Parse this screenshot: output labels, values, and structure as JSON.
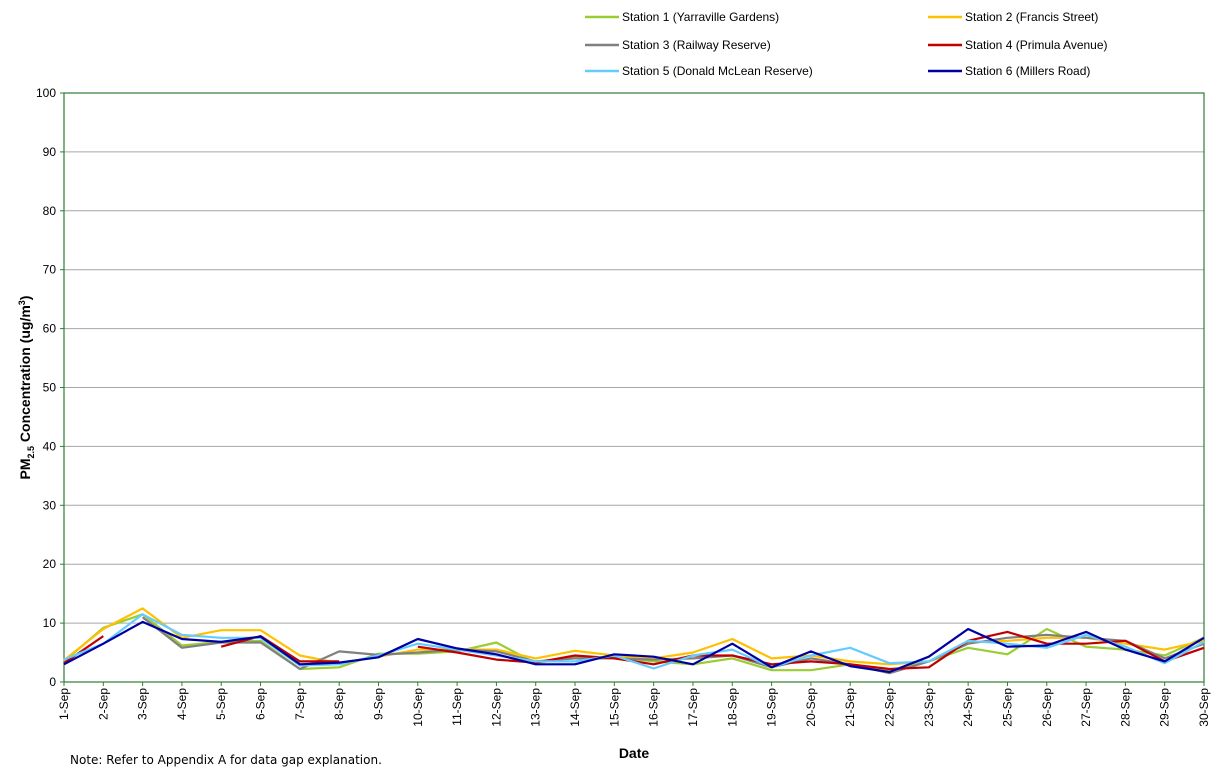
{
  "chart_data": {
    "type": "line",
    "xlabel": "Date",
    "ylabel_main": "PM",
    "ylabel_sub": "2.5",
    "ylabel_rest": " Concentration (ug/m",
    "ylabel_sup": "3",
    "ylabel_end": ")",
    "ylim": [
      0,
      100
    ],
    "yticks": [
      0,
      10,
      20,
      30,
      40,
      50,
      60,
      70,
      80,
      90,
      100
    ],
    "grid": true,
    "legend_position": "top-right",
    "x": [
      "1-Sep",
      "2-Sep",
      "3-Sep",
      "4-Sep",
      "5-Sep",
      "6-Sep",
      "7-Sep",
      "8-Sep",
      "9-Sep",
      "10-Sep",
      "11-Sep",
      "12-Sep",
      "13-Sep",
      "14-Sep",
      "15-Sep",
      "16-Sep",
      "17-Sep",
      "18-Sep",
      "19-Sep",
      "20-Sep",
      "21-Sep",
      "22-Sep",
      "23-Sep",
      "24-Sep",
      "25-Sep",
      "26-Sep",
      "27-Sep",
      "28-Sep",
      "29-Sep",
      "30-Sep"
    ],
    "series": [
      {
        "name": "Station 1 (Yarraville Gardens)",
        "color": "#9acd32",
        "values": [
          3.5,
          9.2,
          11.5,
          6.2,
          6.8,
          7.0,
          2.2,
          2.5,
          4.8,
          4.8,
          5.2,
          6.7,
          3.2,
          4.2,
          4.2,
          3.5,
          3.0,
          4.0,
          2.0,
          2.0,
          3.0,
          2.0,
          3.5,
          5.8,
          4.7,
          9.0,
          6.0,
          5.5,
          4.5,
          7.5
        ]
      },
      {
        "name": "Station 2 (Francis Street)",
        "color": "#ffc000",
        "values": [
          3.7,
          9.0,
          12.5,
          7.5,
          8.8,
          8.8,
          4.5,
          3.2,
          4.3,
          5.5,
          5.5,
          5.5,
          4.0,
          5.3,
          4.5,
          4.0,
          5.0,
          7.3,
          4.0,
          4.5,
          3.5,
          3.0,
          3.5,
          6.7,
          7.0,
          7.5,
          7.5,
          6.5,
          5.5,
          7.0
        ]
      },
      {
        "name": "Station 3 (Railway Reserve)",
        "color": "#808080",
        "values": [
          3.5,
          null,
          11.0,
          5.8,
          6.7,
          6.7,
          2.2,
          5.2,
          4.6,
          5.0,
          5.5,
          5.2,
          3.5,
          4.0,
          4.0,
          3.8,
          4.0,
          4.5,
          2.5,
          4.0,
          3.0,
          1.5,
          3.5,
          6.5,
          7.5,
          8.0,
          7.5,
          7.0,
          4.0,
          6.5
        ]
      },
      {
        "name": "Station 4 (Primula Avenue)",
        "color": "#c00000",
        "values": [
          3.2,
          7.8,
          null,
          null,
          6.0,
          7.8,
          3.5,
          3.5,
          null,
          6.0,
          5.0,
          3.8,
          3.3,
          4.5,
          4.0,
          3.0,
          4.5,
          4.5,
          3.0,
          3.5,
          3.0,
          2.2,
          2.5,
          7.0,
          8.5,
          6.5,
          6.5,
          7.0,
          3.5,
          5.8
        ]
      },
      {
        "name": "Station 5 (Donald McLean Reserve)",
        "color": "#66ccff",
        "values": [
          3.8,
          6.5,
          11.5,
          8.0,
          7.5,
          7.5,
          2.8,
          3.0,
          4.5,
          6.5,
          5.5,
          4.5,
          3.5,
          3.5,
          4.5,
          2.3,
          4.5,
          5.5,
          2.5,
          4.5,
          5.8,
          3.2,
          3.5,
          7.0,
          6.5,
          5.8,
          8.0,
          6.0,
          3.2,
          6.8
        ]
      },
      {
        "name": "Station 6 (Millers Road)",
        "color": "#0000a0",
        "values": [
          3.0,
          6.5,
          10.2,
          7.3,
          6.8,
          7.7,
          3.0,
          3.3,
          4.2,
          7.3,
          5.7,
          4.7,
          3.0,
          3.0,
          4.7,
          4.3,
          3.0,
          6.5,
          2.5,
          5.2,
          2.7,
          1.7,
          4.3,
          9.0,
          6.0,
          6.2,
          8.5,
          5.5,
          3.5,
          7.5
        ]
      }
    ]
  },
  "note": "Note: Refer to Appendix A for data gap explanation."
}
